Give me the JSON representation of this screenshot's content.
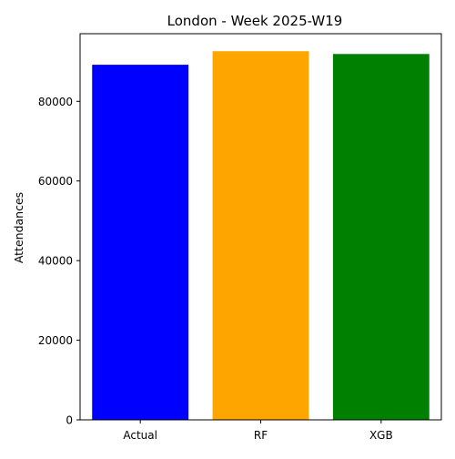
{
  "chart_data": {
    "type": "bar",
    "title": "London - Week 2025-W19",
    "xlabel": "",
    "ylabel": "Attendances",
    "categories": [
      "Actual",
      "RF",
      "XGB"
    ],
    "values": [
      89200,
      92600,
      91900
    ],
    "colors": [
      "#0000ff",
      "#ffa500",
      "#008000"
    ],
    "ylim": [
      0,
      97000
    ],
    "yticks": [
      0,
      20000,
      40000,
      60000,
      80000
    ],
    "grid": false
  }
}
